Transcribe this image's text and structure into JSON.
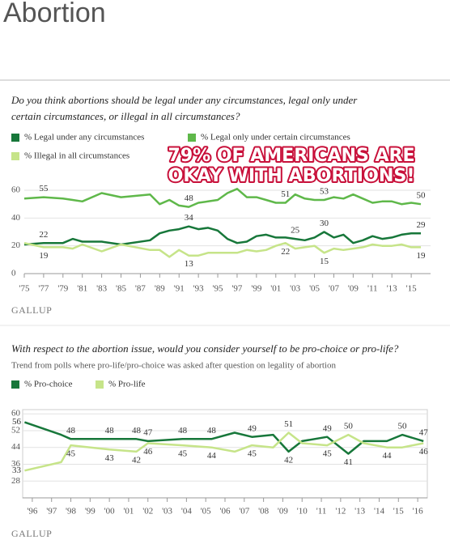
{
  "header": {
    "title": "Abortion"
  },
  "annotation": [
    "79% OF AMERICANS ARE",
    "OKAY WITH ABORTIONS!"
  ],
  "chart_data": [
    {
      "type": "line",
      "title": "Do you think abortions should be legal under any circumstances, legal only under certain circumstances, or illegal in all circumstances?",
      "title_lines": [
        "Do you think abortions should be legal under any circumstances, legal only under",
        "certain circumstances, or illegal in all circumstances?"
      ],
      "source": "GALLUP",
      "x": [
        1975,
        1977,
        1979,
        1980,
        1981,
        1983,
        1985,
        1988,
        1989,
        1990,
        1991,
        1992,
        1993,
        1994,
        1995,
        1996,
        1997,
        1998,
        1999,
        2000,
        2001,
        2002,
        2003,
        2004,
        2005,
        2006,
        2007,
        2008,
        2009,
        2010,
        2011,
        2012,
        2013,
        2014,
        2015,
        2016
      ],
      "xlim": [
        1975,
        2017
      ],
      "xticks": [
        {
          "value": 1975,
          "label": "'75"
        },
        {
          "value": 1977,
          "label": "'77"
        },
        {
          "value": 1979,
          "label": "'79"
        },
        {
          "value": 1981,
          "label": "'81"
        },
        {
          "value": 1983,
          "label": "'83"
        },
        {
          "value": 1985,
          "label": "'85"
        },
        {
          "value": 1987,
          "label": "'87"
        },
        {
          "value": 1989,
          "label": "'89"
        },
        {
          "value": 1991,
          "label": "'91"
        },
        {
          "value": 1993,
          "label": "'93"
        },
        {
          "value": 1995,
          "label": "'95"
        },
        {
          "value": 1997,
          "label": "'97"
        },
        {
          "value": 1999,
          "label": "'99"
        },
        {
          "value": 2001,
          "label": "'01"
        },
        {
          "value": 2003,
          "label": "'03"
        },
        {
          "value": 2005,
          "label": "'05"
        },
        {
          "value": 2007,
          "label": "'07"
        },
        {
          "value": 2009,
          "label": "'09"
        },
        {
          "value": 2011,
          "label": "'11"
        },
        {
          "value": 2013,
          "label": "'13"
        },
        {
          "value": 2015,
          "label": "'15"
        }
      ],
      "ylim": [
        0,
        62
      ],
      "yticks": [
        0,
        20,
        40,
        60
      ],
      "grid": true,
      "series": [
        {
          "name": "% Legal under any circumstances",
          "color": "#17773a",
          "values": [
            21,
            22,
            22,
            25,
            23,
            23,
            21,
            24,
            29,
            31,
            32,
            34,
            32,
            33,
            31,
            25,
            22,
            23,
            27,
            28,
            26,
            26,
            25,
            24,
            26,
            30,
            26,
            28,
            22,
            24,
            27,
            25,
            26,
            28,
            29,
            29
          ],
          "value_labels": [
            null,
            "22",
            null,
            null,
            null,
            null,
            null,
            null,
            null,
            null,
            null,
            "34",
            null,
            null,
            null,
            null,
            null,
            null,
            null,
            null,
            null,
            null,
            "25",
            null,
            null,
            "30",
            null,
            null,
            null,
            null,
            null,
            null,
            null,
            null,
            null,
            "29"
          ]
        },
        {
          "name": "% Legal only under certain circumstances",
          "color": "#5fb84a",
          "values": [
            54,
            55,
            54,
            53,
            52,
            58,
            55,
            57,
            50,
            53,
            49,
            48,
            51,
            52,
            53,
            58,
            61,
            55,
            55,
            53,
            51,
            51,
            57,
            54,
            53,
            53,
            55,
            54,
            57,
            54,
            51,
            52,
            52,
            50,
            51,
            50
          ],
          "value_labels": [
            null,
            "55",
            null,
            null,
            null,
            null,
            null,
            null,
            null,
            null,
            null,
            "48",
            null,
            null,
            null,
            null,
            null,
            null,
            null,
            null,
            null,
            "51",
            null,
            null,
            null,
            "53",
            null,
            null,
            null,
            null,
            null,
            null,
            null,
            null,
            null,
            "50"
          ]
        },
        {
          "name": "% Illegal in all circumstances",
          "color": "#c6e489",
          "values": [
            22,
            19,
            19,
            18,
            21,
            16,
            21,
            17,
            17,
            12,
            17,
            13,
            13,
            15,
            15,
            15,
            15,
            17,
            16,
            17,
            20,
            22,
            18,
            19,
            20,
            15,
            18,
            17,
            18,
            19,
            21,
            20,
            20,
            21,
            19,
            19
          ],
          "value_labels": [
            null,
            "19",
            null,
            null,
            null,
            null,
            null,
            null,
            null,
            null,
            null,
            "13",
            null,
            null,
            null,
            null,
            null,
            null,
            null,
            null,
            null,
            "22",
            null,
            null,
            null,
            "15",
            null,
            null,
            null,
            null,
            null,
            null,
            null,
            null,
            null,
            "19"
          ]
        }
      ]
    },
    {
      "type": "line",
      "title": "With respect to the abortion issue, would you consider yourself to be pro-choice or pro-life?",
      "subtitle": "Trend from polls where pro-life/pro-choice was asked after question on legality of abortion",
      "source": "GALLUP",
      "x": [
        1995.6,
        1997.5,
        1998,
        2000,
        2001.4,
        2002,
        2003.8,
        2005.3,
        2006.5,
        2007.4,
        2008.5,
        2009.3,
        2010,
        2011.3,
        2012.4,
        2013.2,
        2014.4,
        2015.2,
        2016.3
      ],
      "xlim": [
        1995.5,
        2016.5
      ],
      "xticks": [
        {
          "value": 1996,
          "label": "'96"
        },
        {
          "value": 1997,
          "label": "'97"
        },
        {
          "value": 1998,
          "label": "'98"
        },
        {
          "value": 1999,
          "label": "'99"
        },
        {
          "value": 2000,
          "label": "'00"
        },
        {
          "value": 2001,
          "label": "'01"
        },
        {
          "value": 2002,
          "label": "'02"
        },
        {
          "value": 2003,
          "label": "'03"
        },
        {
          "value": 2004,
          "label": "'04"
        },
        {
          "value": 2005,
          "label": "'05"
        },
        {
          "value": 2006,
          "label": "'06"
        },
        {
          "value": 2007,
          "label": "'07"
        },
        {
          "value": 2008,
          "label": "'08"
        },
        {
          "value": 2009,
          "label": "'09"
        },
        {
          "value": 2010,
          "label": "'10"
        },
        {
          "value": 2011,
          "label": "'11"
        },
        {
          "value": 2012,
          "label": "'12"
        },
        {
          "value": 2013,
          "label": "'13"
        },
        {
          "value": 2014,
          "label": "'14"
        },
        {
          "value": 2015,
          "label": "'15"
        },
        {
          "value": 2016,
          "label": "'16"
        }
      ],
      "ylim": [
        20,
        62
      ],
      "yticks": [
        28,
        36,
        44,
        52,
        60
      ],
      "grid": true,
      "series": [
        {
          "name": "% Pro-choice",
          "color": "#17773a",
          "values": [
            56,
            50,
            48,
            48,
            48,
            47,
            48,
            48,
            51,
            49,
            50,
            42,
            47,
            49,
            41,
            47,
            47,
            50,
            47
          ],
          "value_labels": [
            "56",
            null,
            "48",
            "48",
            "48",
            "47",
            "48",
            "48",
            null,
            "49",
            null,
            "42",
            null,
            "49",
            "41",
            null,
            null,
            "50",
            "47"
          ]
        },
        {
          "name": "% Pro-life",
          "color": "#c6e489",
          "values": [
            33,
            37,
            45,
            43,
            42,
            46,
            45,
            44,
            42,
            45,
            44,
            51,
            46,
            45,
            50,
            46,
            44,
            44,
            46
          ],
          "value_labels": [
            "33",
            null,
            "45",
            "43",
            "42",
            "46",
            "45",
            "44",
            null,
            "45",
            null,
            "51",
            null,
            "45",
            "50",
            null,
            "44",
            null,
            "46"
          ]
        }
      ]
    }
  ]
}
